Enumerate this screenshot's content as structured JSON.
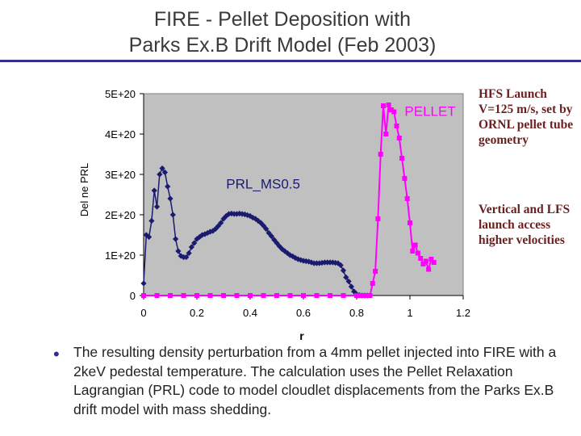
{
  "title_line1": "FIRE  -  Pellet Deposition with",
  "title_line2": "Parks Ex.B Drift Model (Feb 2003)",
  "note_hfs": "HFS Launch V=125 m/s, set by ORNL pellet tube geometry",
  "note_vertical": "Vertical and LFS launch access higher velocities",
  "bullet_text": "The resulting density perturbation from a 4mm pellet injected into FIRE with a 2keV pedestal temperature. The calculation uses the Pellet Relaxation Lagrangian (PRL)  code to model cloudlet displacements from the Parks Ex.B drift model with mass shedding.",
  "colors": {
    "plot_background": "#c0c0c0",
    "prl_series": "#1a1a6e",
    "pellet_series": "#ff00ff",
    "title_rule": "#2f2f8f"
  },
  "chart_data": {
    "type": "line",
    "xlabel": "r",
    "ylabel": "Del ne PRL",
    "xlim": [
      0,
      1.2
    ],
    "ylim": [
      0,
      5e+20
    ],
    "grid": false,
    "x_ticks": [
      0,
      0.2,
      0.4,
      0.6,
      0.8,
      1,
      1.2
    ],
    "x_tick_labels": [
      "0",
      "0.2",
      "0.4",
      "0.6",
      "0.8",
      "1",
      "1.2"
    ],
    "y_ticks": [
      0,
      1e+20,
      2e+20,
      3e+20,
      4e+20,
      5e+20
    ],
    "y_tick_labels": [
      "0",
      "1E+20",
      "2E+20",
      "3E+20",
      "4E+20",
      "5E+20"
    ],
    "series": [
      {
        "name": "PRL_MS0.5",
        "marker": "diamond",
        "label_at": [
          0.31,
          2.65e+20
        ],
        "x": [
          0.0,
          0.01,
          0.02,
          0.03,
          0.04,
          0.05,
          0.06,
          0.07,
          0.08,
          0.09,
          0.1,
          0.11,
          0.12,
          0.13,
          0.14,
          0.15,
          0.16,
          0.17,
          0.18,
          0.19,
          0.2,
          0.21,
          0.22,
          0.23,
          0.24,
          0.25,
          0.26,
          0.27,
          0.28,
          0.29,
          0.3,
          0.31,
          0.32,
          0.33,
          0.34,
          0.35,
          0.36,
          0.37,
          0.38,
          0.39,
          0.4,
          0.41,
          0.42,
          0.43,
          0.44,
          0.45,
          0.46,
          0.47,
          0.48,
          0.49,
          0.5,
          0.51,
          0.52,
          0.53,
          0.54,
          0.55,
          0.56,
          0.57,
          0.58,
          0.59,
          0.6,
          0.61,
          0.62,
          0.63,
          0.64,
          0.65,
          0.66,
          0.67,
          0.68,
          0.69,
          0.7,
          0.71,
          0.72,
          0.73,
          0.74,
          0.75,
          0.76,
          0.77,
          0.78,
          0.79,
          0.8,
          0.81,
          0.82,
          0.83,
          0.84
        ],
        "y": [
          3e+19,
          1.5e+20,
          1.45e+20,
          1.85e+20,
          2.6e+20,
          2.2e+20,
          3e+20,
          3.15e+20,
          3.05e+20,
          2.7e+20,
          2.4e+20,
          2e+20,
          1.4e+20,
          1.1e+20,
          9.8e+19,
          9.5e+19,
          9.5e+19,
          1.05e+20,
          1.2e+20,
          1.3e+20,
          1.4e+20,
          1.45e+20,
          1.5e+20,
          1.52e+20,
          1.55e+20,
          1.58e+20,
          1.6e+20,
          1.65e+20,
          1.72e+20,
          1.8e+20,
          1.9e+20,
          1.97e+20,
          2.02e+20,
          2.03e+20,
          2.02e+20,
          2.02e+20,
          2.03e+20,
          2.02e+20,
          2.01e+20,
          1.99e+20,
          1.97e+20,
          1.93e+20,
          1.9e+20,
          1.85e+20,
          1.8e+20,
          1.73e+20,
          1.65e+20,
          1.55e+20,
          1.47e+20,
          1.38e+20,
          1.3e+20,
          1.22e+20,
          1.15e+20,
          1.1e+20,
          1.05e+20,
          1e+20,
          9.7e+19,
          9.3e+19,
          9e+19,
          8.8e+19,
          8.6e+19,
          8.5e+19,
          8.4e+19,
          8.2e+19,
          8e+19,
          8e+19,
          8e+19,
          8.1e+19,
          8.2e+19,
          8.2e+19,
          8.2e+19,
          8.2e+19,
          8.1e+19,
          8e+19,
          7.5e+19,
          6.2e+19,
          4.5e+19,
          3.5e+19,
          2.2e+19,
          1e+19,
          3e+18,
          1e+18,
          0.0,
          0.0,
          0.0
        ]
      },
      {
        "name": "PELLET",
        "marker": "square",
        "label_at": [
          0.98,
          4.45e+20
        ],
        "x": [
          0.0,
          0.05,
          0.1,
          0.15,
          0.2,
          0.25,
          0.3,
          0.35,
          0.4,
          0.45,
          0.5,
          0.55,
          0.6,
          0.65,
          0.7,
          0.75,
          0.8,
          0.81,
          0.82,
          0.83,
          0.84,
          0.85,
          0.86,
          0.87,
          0.88,
          0.89,
          0.9,
          0.91,
          0.92,
          0.93,
          0.94,
          0.95,
          0.96,
          0.97,
          0.98,
          0.99,
          1.0,
          1.01,
          1.02,
          1.03,
          1.04,
          1.05,
          1.06,
          1.07,
          1.08,
          1.09
        ],
        "y": [
          0,
          0,
          0,
          0,
          0,
          0,
          0,
          0,
          0,
          0,
          0,
          0,
          0,
          0,
          0,
          0,
          0,
          0,
          0,
          0,
          0,
          0,
          3e+19,
          6e+19,
          1.9e+20,
          3.5e+20,
          4.7e+20,
          4e+20,
          4.72e+20,
          4.6e+20,
          4.55e+20,
          4.2e+20,
          3.9e+20,
          3.4e+20,
          2.9e+20,
          2.4e+20,
          1.8e+20,
          1.1e+20,
          1.25e+20,
          1.05e+20,
          9.2e+19,
          7.8e+19,
          8.5e+19,
          6.5e+19,
          9e+19,
          8.2e+19
        ]
      }
    ]
  }
}
